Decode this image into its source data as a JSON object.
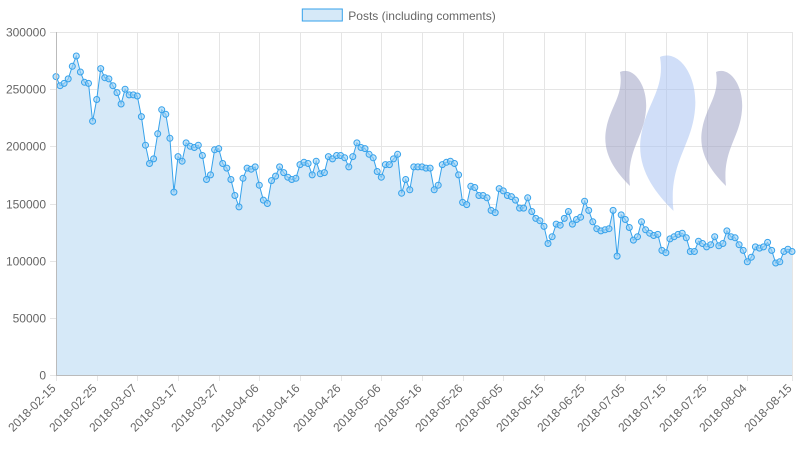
{
  "chart_data": {
    "type": "area",
    "legend": {
      "label": "Posts (including comments)",
      "position": "top"
    },
    "colors": {
      "line": "#36a2eb",
      "fill": "#d6e9f8",
      "point_fill": "#9ad0f5",
      "grid": "#e5e5e5",
      "text": "#666666",
      "logo": [
        "#9ea3c4",
        "#a9c3f2",
        "#9ea3c4"
      ]
    },
    "logo_icon": "steem-logo-icon",
    "grid": true,
    "ylim": [
      0,
      300000
    ],
    "yticks": [
      0,
      50000,
      100000,
      150000,
      200000,
      250000,
      300000
    ],
    "ytick_labels": [
      "0",
      "50000",
      "100000",
      "150000",
      "200000",
      "250000",
      "300000"
    ],
    "x_start": "2018-02-15",
    "x_end": "2018-08-15",
    "xtick_labels": [
      "2018-02-15",
      "2018-02-25",
      "2018-03-07",
      "2018-03-17",
      "2018-03-27",
      "2018-04-06",
      "2018-04-16",
      "2018-04-26",
      "2018-05-06",
      "2018-05-16",
      "2018-05-26",
      "2018-06-05",
      "2018-06-15",
      "2018-06-25",
      "2018-07-05",
      "2018-07-15",
      "2018-07-25",
      "2018-08-04",
      "2018-08-15"
    ],
    "series": [
      {
        "name": "Posts (including comments)",
        "values": [
          261000,
          253000,
          255000,
          259000,
          270000,
          279000,
          265000,
          256000,
          255000,
          222000,
          241000,
          268000,
          260000,
          259000,
          253000,
          247000,
          237000,
          250000,
          245000,
          245000,
          244000,
          226000,
          201000,
          185000,
          189000,
          211000,
          232000,
          228000,
          207000,
          160000,
          191000,
          187000,
          203000,
          200000,
          199000,
          201000,
          192000,
          171000,
          175000,
          197000,
          198000,
          185000,
          181000,
          171000,
          157000,
          147000,
          172000,
          181000,
          180000,
          182000,
          166000,
          153000,
          150000,
          170000,
          174000,
          182000,
          177000,
          173000,
          171000,
          172000,
          184000,
          186000,
          185000,
          175000,
          187000,
          176000,
          177000,
          191000,
          189000,
          192000,
          192000,
          190000,
          182000,
          191000,
          203000,
          199000,
          198000,
          193000,
          190000,
          178000,
          173000,
          184000,
          184000,
          189000,
          193000,
          159000,
          171000,
          162000,
          182000,
          182000,
          182000,
          181000,
          181000,
          162000,
          166000,
          184000,
          186000,
          187000,
          185000,
          175000,
          151000,
          149000,
          165000,
          164000,
          157000,
          157000,
          155000,
          144000,
          142000,
          163000,
          161000,
          157000,
          156000,
          153000,
          146000,
          146000,
          155000,
          143000,
          137000,
          135000,
          130000,
          115000,
          121000,
          132000,
          131000,
          137000,
          143000,
          132000,
          136000,
          138000,
          152000,
          144000,
          134000,
          128000,
          126000,
          127000,
          128000,
          144000,
          104000,
          140000,
          136000,
          129000,
          118000,
          121000,
          134000,
          127000,
          124000,
          122000,
          123000,
          109000,
          107000,
          119000,
          121000,
          123000,
          124000,
          120000,
          108000,
          108000,
          117000,
          115000,
          112000,
          114000,
          121000,
          113000,
          115000,
          126000,
          121000,
          120000,
          114000,
          109000,
          99000,
          103000,
          112000,
          111000,
          112000,
          116000,
          109000,
          98000,
          99000,
          108000,
          110000,
          108000
        ]
      }
    ]
  }
}
